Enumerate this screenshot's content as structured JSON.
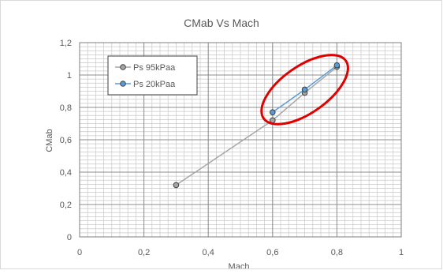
{
  "chart_data": {
    "type": "scatter",
    "title": "CMab Vs Mach",
    "xlabel": "Mach",
    "ylabel": "CMab",
    "xlim": [
      0,
      1
    ],
    "ylim": [
      0,
      1.2
    ],
    "x_ticks": [
      "0",
      "0,2",
      "0,4",
      "0,6",
      "0,8",
      "1"
    ],
    "y_ticks": [
      "0",
      "0,2",
      "0,4",
      "0,6",
      "0,8",
      "1",
      "1,2"
    ],
    "grid": true,
    "legend_position": "top-left",
    "series": [
      {
        "name": "Ps 95kPaa",
        "color": "#a6a6a6",
        "marker_fill": "#a5a5a5",
        "points": [
          {
            "x": 0.3,
            "y": 0.32
          },
          {
            "x": 0.6,
            "y": 0.72
          },
          {
            "x": 0.7,
            "y": 0.89
          },
          {
            "x": 0.8,
            "y": 1.05
          }
        ]
      },
      {
        "name": "Ps 20kPaa",
        "color": "#5b9bd5",
        "marker_fill": "#5b9bd5",
        "points": [
          {
            "x": 0.6,
            "y": 0.77
          },
          {
            "x": 0.7,
            "y": 0.91
          },
          {
            "x": 0.8,
            "y": 1.06
          }
        ]
      }
    ],
    "annotations": [
      {
        "type": "ellipse",
        "color": "#e00000",
        "center": {
          "x": 0.7,
          "y": 0.91
        },
        "rx": 0.3,
        "ry": 0.19,
        "rotation_deg": -35
      }
    ]
  }
}
